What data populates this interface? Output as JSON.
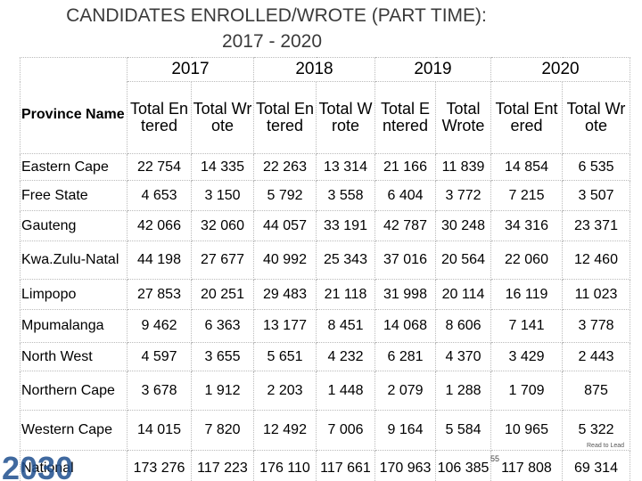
{
  "title": [
    "CANDIDATES ENROLLED/WROTE (PART TIME):",
    "2017 - 2020"
  ],
  "table": {
    "corner": "Province Name",
    "years": [
      "2017",
      "2018",
      "2019",
      "2020"
    ],
    "subheaders": [
      "Total Entered",
      "Total Wrote",
      "Total Entered",
      "Total Wrote",
      "Total Entered",
      "Total Wrote",
      "Total Entered",
      "Total Wrote"
    ],
    "rows": [
      [
        "Eastern Cape",
        "22 754",
        "14 335",
        "22 263",
        "13 314",
        "21 166",
        "11 839",
        "14 854",
        "6 535"
      ],
      [
        "Free State",
        "4 653",
        "3 150",
        "5 792",
        "3 558",
        "6 404",
        "3 772",
        "7 215",
        "3 507"
      ],
      [
        "Gauteng",
        "42 066",
        "32 060",
        "44 057",
        "33 191",
        "42 787",
        "30 248",
        "34 316",
        "23 371"
      ],
      [
        "Kwa.Zulu-Natal",
        "44 198",
        "27 677",
        "40 992",
        "25 343",
        "37 016",
        "20 564",
        "22 060",
        "12 460"
      ],
      [
        "Limpopo",
        "27 853",
        "20 251",
        "29 483",
        "21 118",
        "31 998",
        "20 114",
        "16 119",
        "11 023"
      ],
      [
        "Mpumalanga",
        "9 462",
        "6 363",
        "13 177",
        "8 451",
        "14 068",
        "8 606",
        "7 141",
        "3 778"
      ],
      [
        "North West",
        "4 597",
        "3 655",
        "5 651",
        "4 232",
        "6 281",
        "4 370",
        "3 429",
        "2 443"
      ],
      [
        "Northern Cape",
        "3 678",
        "1 912",
        "2 203",
        "1 448",
        "2 079",
        "1 288",
        "1 709",
        "875"
      ],
      [
        "Western Cape",
        "14 015",
        "7 820",
        "12 492",
        "7 006",
        "9 164",
        "5 584",
        "10 965",
        "5 322"
      ],
      [
        "National",
        "173 276",
        "117 223",
        "176 110",
        "117 661",
        "170 963",
        "106 385",
        "117 808",
        "69 314"
      ]
    ]
  },
  "page_number": "55",
  "logos": [
    "2030",
    "Read to Lead"
  ]
}
